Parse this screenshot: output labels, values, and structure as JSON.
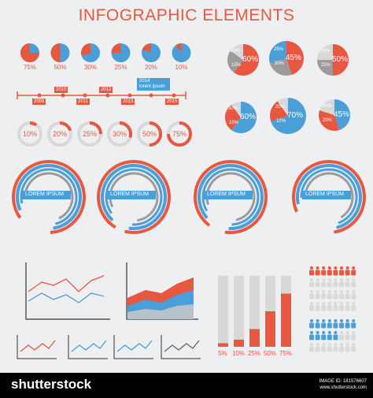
{
  "title": "INFOGRAPHIC ELEMENTS",
  "colors": {
    "red": "#e8573f",
    "blue": "#4a9fd8",
    "gray": "#9b9b9b",
    "light": "#d8d8d8"
  },
  "small_pies": [
    {
      "label": "75%",
      "value": 75
    },
    {
      "label": "50%",
      "value": 50
    },
    {
      "label": "30%",
      "value": 30
    },
    {
      "label": "25%",
      "value": 25
    },
    {
      "label": "20%",
      "value": 20
    },
    {
      "label": "10%",
      "value": 10
    }
  ],
  "timeline": {
    "years_top": [
      "2010",
      "2012"
    ],
    "years_bottom": [
      "2009",
      "2011",
      "2013",
      "2015"
    ],
    "note_year": "2014",
    "note_text": "lorem ipsum"
  },
  "rings": [
    {
      "label": "10%",
      "value": 10
    },
    {
      "label": "20%",
      "value": 20
    },
    {
      "label": "25%",
      "value": 25
    },
    {
      "label": "30%",
      "value": 30
    },
    {
      "label": "50%",
      "value": 50
    },
    {
      "label": "75%",
      "value": 75
    }
  ],
  "big_pies": [
    {
      "main": "60%",
      "small1": "25%",
      "small2": "15%"
    },
    {
      "main": "45%",
      "small1": "25%",
      "small2": "30%"
    },
    {
      "main": "50%",
      "small1": "25%",
      "small2": "25%"
    },
    {
      "main": "60%",
      "small1": "30%",
      "small2": "10%"
    },
    {
      "main": "70%",
      "small1": "20%",
      "small2": "10%"
    },
    {
      "main": "45%",
      "small1": "35%",
      "small2": "20%"
    }
  ],
  "arcs": [
    {
      "text": "LOREM IPSUM"
    },
    {
      "text": "LOREM IPSUM"
    },
    {
      "text": "LOREM IPSUM"
    },
    {
      "text": "LOREM IPSUM"
    }
  ],
  "bars": [
    {
      "label": "5%",
      "value": 5
    },
    {
      "label": "10%",
      "value": 10
    },
    {
      "label": "25%",
      "value": 25
    },
    {
      "label": "50%",
      "value": 50
    },
    {
      "label": "75%",
      "value": 75
    }
  ],
  "footer": {
    "brand": "shutterstock",
    "image_id": "IMAGE ID: 181576607",
    "site": "www.shutterstock.com"
  }
}
